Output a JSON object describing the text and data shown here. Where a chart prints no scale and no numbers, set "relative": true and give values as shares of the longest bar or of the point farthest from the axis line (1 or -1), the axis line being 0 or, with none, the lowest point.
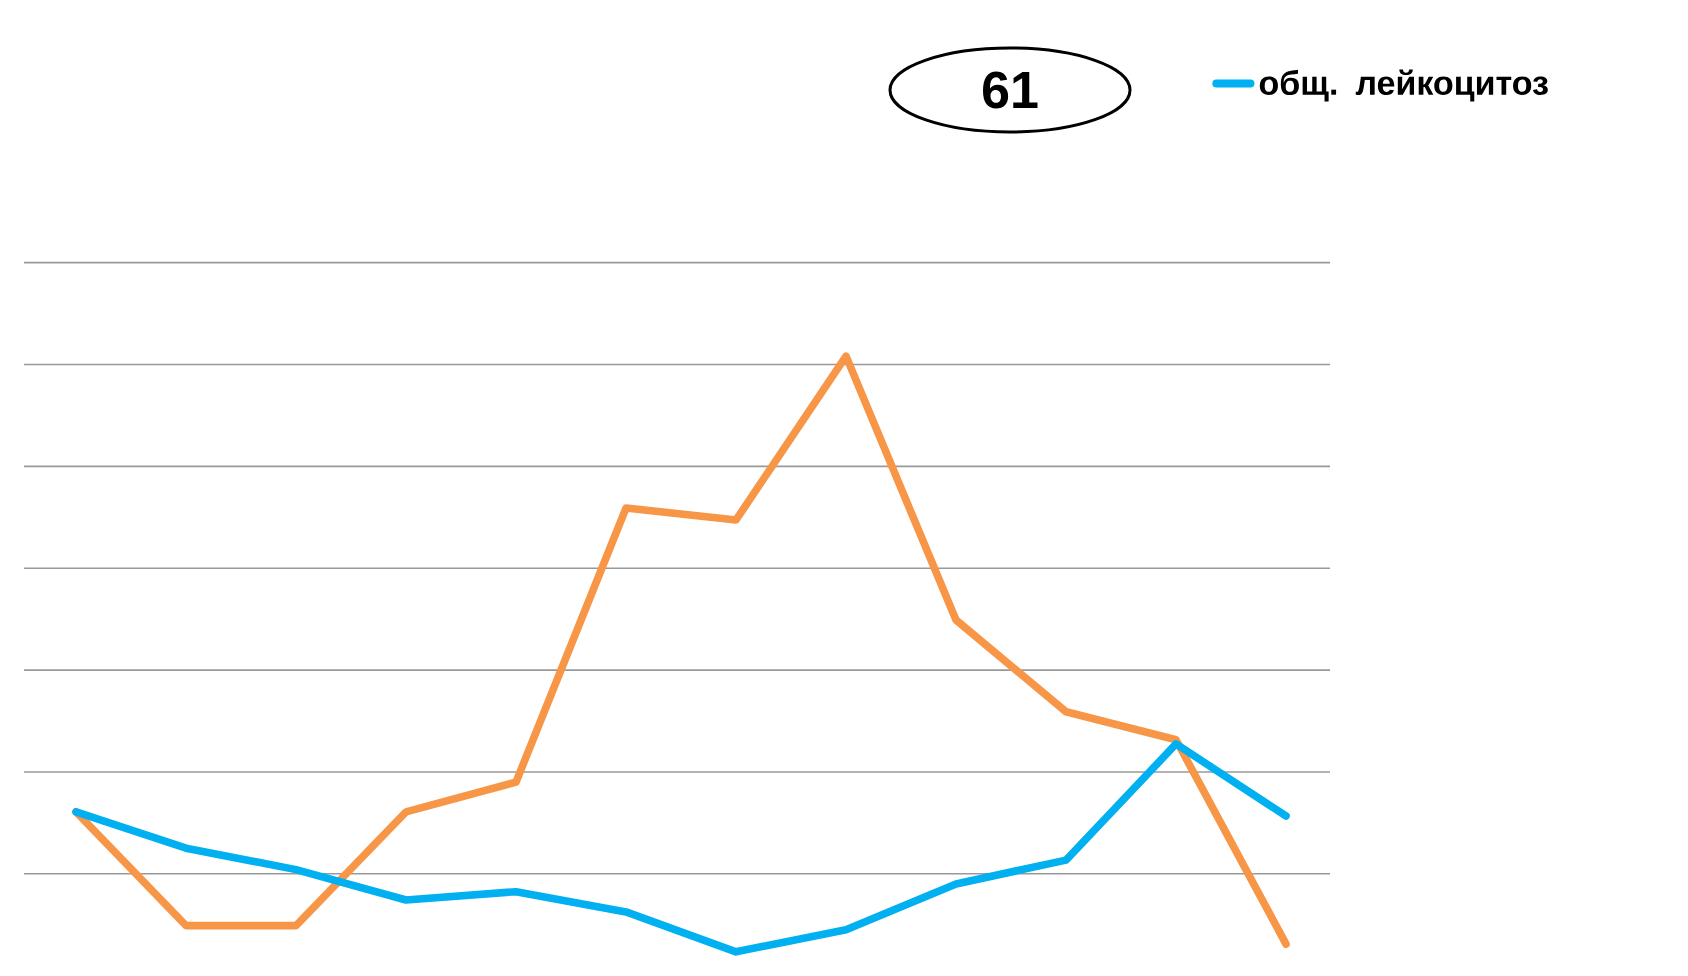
{
  "chart_data": {
    "type": "line",
    "relative": true,
    "grid": "y",
    "legend": "top right",
    "categories": [
      null,
      null,
      null,
      null,
      null,
      null,
      null,
      null,
      null,
      null,
      null,
      null
    ],
    "annotations": [
      "61"
    ],
    "series": [
      {
        "color": "#f79646",
        "values": [
          0.235,
          0.044,
          0.044,
          0.235,
          0.285,
          0.745,
          0.725,
          1,
          0.557,
          0.403,
          0.356,
          0.013
        ]
      },
      {
        "name": "общ. лейкоцитоз",
        "color": "#00b0f0",
        "values": [
          0.235,
          0.174,
          0.138,
          0.087,
          0.101,
          0.067,
          0,
          0.037,
          0.114,
          0.154,
          0.349,
          0.228
        ]
      }
    ]
  }
}
